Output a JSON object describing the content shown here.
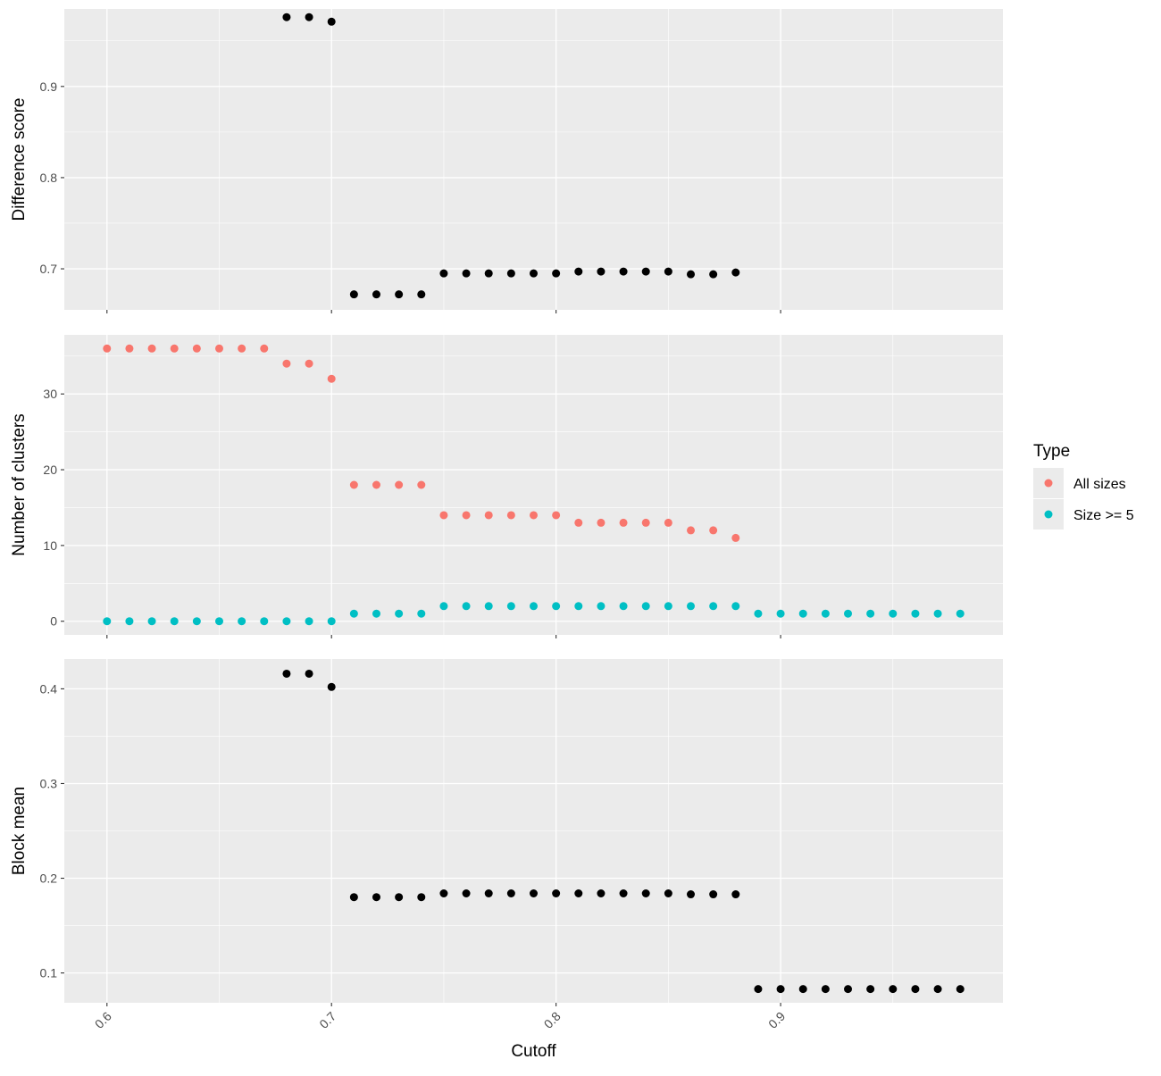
{
  "chart_data": [
    {
      "type": "scatter",
      "ylabel": "Difference score",
      "ylim": [
        0.655,
        0.985
      ],
      "yticks": [
        0.7,
        0.8,
        0.9
      ],
      "ytick_labels": [
        "0.7",
        "0.8",
        "0.9"
      ],
      "series": [
        {
          "color": "#000000",
          "x": [
            0.68,
            0.69,
            0.7,
            0.71,
            0.72,
            0.73,
            0.74,
            0.75,
            0.76,
            0.77,
            0.78,
            0.79,
            0.8,
            0.81,
            0.82,
            0.83,
            0.84,
            0.85,
            0.86,
            0.87,
            0.88
          ],
          "y": [
            0.976,
            0.976,
            0.971,
            0.672,
            0.672,
            0.672,
            0.672,
            0.695,
            0.695,
            0.695,
            0.695,
            0.695,
            0.695,
            0.697,
            0.697,
            0.697,
            0.697,
            0.697,
            0.694,
            0.694,
            0.696
          ]
        }
      ]
    },
    {
      "type": "scatter",
      "ylabel": "Number of clusters",
      "ylim": [
        -1.8,
        37.8
      ],
      "yticks": [
        0,
        10,
        20,
        30
      ],
      "ytick_labels": [
        "0",
        "10",
        "20",
        "30"
      ],
      "series": [
        {
          "name": "All sizes",
          "color": "#F8766D",
          "x": [
            0.6,
            0.61,
            0.62,
            0.63,
            0.64,
            0.65,
            0.66,
            0.67,
            0.68,
            0.69,
            0.7,
            0.71,
            0.72,
            0.73,
            0.74,
            0.75,
            0.76,
            0.77,
            0.78,
            0.79,
            0.8,
            0.81,
            0.82,
            0.83,
            0.84,
            0.85,
            0.86,
            0.87,
            0.88
          ],
          "y": [
            36,
            36,
            36,
            36,
            36,
            36,
            36,
            36,
            34,
            34,
            32,
            18,
            18,
            18,
            18,
            14,
            14,
            14,
            14,
            14,
            14,
            13,
            13,
            13,
            13,
            13,
            12,
            12,
            11
          ]
        },
        {
          "name": "Size >= 5",
          "color": "#00BFC4",
          "x": [
            0.6,
            0.61,
            0.62,
            0.63,
            0.64,
            0.65,
            0.66,
            0.67,
            0.68,
            0.69,
            0.7,
            0.71,
            0.72,
            0.73,
            0.74,
            0.75,
            0.76,
            0.77,
            0.78,
            0.79,
            0.8,
            0.81,
            0.82,
            0.83,
            0.84,
            0.85,
            0.86,
            0.87,
            0.88,
            0.89,
            0.9,
            0.91,
            0.92,
            0.93,
            0.94,
            0.95,
            0.96,
            0.97,
            0.98
          ],
          "y": [
            0,
            0,
            0,
            0,
            0,
            0,
            0,
            0,
            0,
            0,
            0,
            1,
            1,
            1,
            1,
            2,
            2,
            2,
            2,
            2,
            2,
            2,
            2,
            2,
            2,
            2,
            2,
            2,
            2,
            1,
            1,
            1,
            1,
            1,
            1,
            1,
            1,
            1,
            1
          ]
        }
      ]
    },
    {
      "type": "scatter",
      "ylabel": "Block mean",
      "ylim": [
        0.0685,
        0.4315
      ],
      "yticks": [
        0.1,
        0.2,
        0.3,
        0.4
      ],
      "ytick_labels": [
        "0.1",
        "0.2",
        "0.3",
        "0.4"
      ],
      "series": [
        {
          "color": "#000000",
          "x": [
            0.68,
            0.69,
            0.7,
            0.71,
            0.72,
            0.73,
            0.74,
            0.75,
            0.76,
            0.77,
            0.78,
            0.79,
            0.8,
            0.81,
            0.82,
            0.83,
            0.84,
            0.85,
            0.86,
            0.87,
            0.88,
            0.89,
            0.9,
            0.91,
            0.92,
            0.93,
            0.94,
            0.95,
            0.96,
            0.97,
            0.98
          ],
          "y": [
            0.416,
            0.416,
            0.402,
            0.18,
            0.18,
            0.18,
            0.18,
            0.184,
            0.184,
            0.184,
            0.184,
            0.184,
            0.184,
            0.184,
            0.184,
            0.184,
            0.184,
            0.184,
            0.183,
            0.183,
            0.183,
            0.083,
            0.083,
            0.083,
            0.083,
            0.083,
            0.083,
            0.083,
            0.083,
            0.083,
            0.083
          ]
        }
      ]
    }
  ],
  "x_axis": {
    "label": "Cutoff",
    "xlim": [
      0.581,
      0.999
    ],
    "ticks": [
      0.6,
      0.7,
      0.8,
      0.9
    ],
    "tick_labels": [
      "0.6",
      "0.7",
      "0.8",
      "0.9"
    ],
    "tick_label_rotation": "45 degrees"
  },
  "legend": {
    "title": "Type",
    "placement": "right",
    "entries": [
      {
        "label": "All sizes",
        "color": "#F8766D"
      },
      {
        "label": "Size >= 5",
        "color": "#00BFC4"
      }
    ]
  },
  "colors": {
    "panel_background": "#EBEBEB",
    "grid_line": "#FFFFFF",
    "axis_text": "#4D4D4D",
    "tick": "#333333"
  },
  "grid": true
}
